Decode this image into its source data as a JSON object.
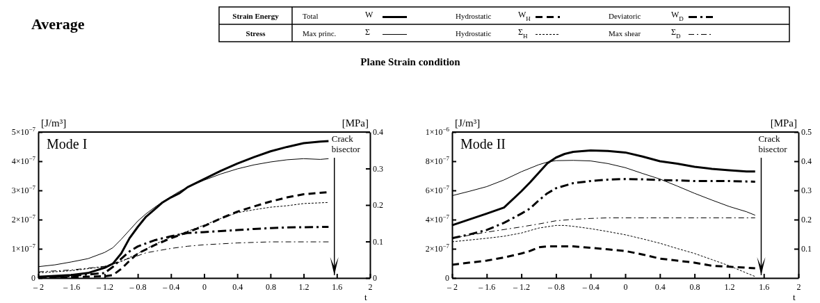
{
  "chart_data": [
    {
      "type": "line",
      "title": "Average",
      "subtitle": "Plane Strain condition",
      "xlabel": "t",
      "ylabel": "[J/m³]",
      "y2label": "[MPa]",
      "legend": "top",
      "grid": false,
      "annotations": [
        "Strain Energy",
        "Stress",
        "Mode I"
      ],
      "ref_lines": [
        {
          "axis": "x",
          "value": 1.57,
          "label": "Crack bisector"
        }
      ],
      "xlim": [
        -2,
        2
      ],
      "xticks": [
        {
          "value": -2,
          "label": "– 2"
        },
        {
          "value": -1.6,
          "label": "– 1.6"
        },
        {
          "value": -1.2,
          "label": "– 1.2"
        },
        {
          "value": -0.8,
          "label": "– 0.8"
        },
        {
          "value": -0.4,
          "label": "– 0.4"
        },
        0,
        0.4,
        0.8,
        1.2,
        1.6,
        2
      ],
      "ylim": [
        0,
        5e-07
      ],
      "yticks": [
        0,
        {
          "value": 1e-07,
          "label": "1×10$^{−7}$"
        },
        {
          "value": 2e-07,
          "label": "2×10$^{−7}$"
        },
        {
          "value": 3e-07,
          "label": "3×10$^{−7}$"
        },
        {
          "value": 4e-07,
          "label": "4×10$^{−7}$"
        },
        {
          "value": 5e-07,
          "label": "5×10$^{−7}$"
        }
      ],
      "y2lim": [
        0,
        0.4
      ],
      "y2ticks": [
        0,
        0.1,
        0.2,
        0.3,
        0.4
      ],
      "series": [
        {
          "name": "Total W",
          "color": "#000000",
          "line_style": "solid",
          "axis": "y",
          "x": [
            -2,
            -1.6,
            -1.4,
            -1.2,
            -1.1,
            -1,
            -0.9,
            -0.8,
            -0.7,
            -0.6,
            -0.5,
            -0.4,
            -0.3,
            -0.2,
            0,
            0.2,
            0.4,
            0.6,
            0.8,
            1,
            1.2,
            1.4,
            1.5
          ],
          "values": [
            4e-09,
            1e-08,
            1.7e-08,
            3.5e-08,
            4.9e-08,
            8.4e-08,
            1.36e-07,
            1.75e-07,
            2.1e-07,
            2.34e-07,
            2.59e-07,
            2.76e-07,
            2.9e-07,
            3.11e-07,
            3.39e-07,
            3.67e-07,
            3.92e-07,
            4.14e-07,
            4.34e-07,
            4.49e-07,
            4.62e-07,
            4.67e-07,
            4.69e-07
          ]
        },
        {
          "name": "Hydrostatic W$_{H}$",
          "color": "#000000",
          "line_style": "dashed",
          "axis": "y",
          "x": [
            -2,
            -1.6,
            -1.2,
            -1.1,
            -1,
            -0.9,
            -0.8,
            -0.6,
            -0.4,
            -0.2,
            0,
            0.2,
            0.4,
            0.6,
            0.8,
            1,
            1.2,
            1.5
          ],
          "values": [
            1e-09,
            3e-09,
            6e-09,
            1e-08,
            3.1e-08,
            5.9e-08,
            8.4e-08,
            1.12e-07,
            1.36e-07,
            1.57e-07,
            1.78e-07,
            2.04e-07,
            2.27e-07,
            2.45e-07,
            2.62e-07,
            2.76e-07,
            2.87e-07,
            2.94e-07
          ]
        },
        {
          "name": "Deviatoric W$_{D}$",
          "color": "#000000",
          "line_style": "dashdot",
          "axis": "y",
          "x": [
            -2,
            -1.6,
            -1.2,
            -1.1,
            -1,
            -0.9,
            -0.8,
            -0.6,
            -0.4,
            -0.2,
            0,
            0.2,
            0.4,
            0.6,
            0.8,
            1,
            1.2,
            1.5
          ],
          "values": [
            1e-09,
            7e-09,
            1.7e-08,
            3.8e-08,
            6.6e-08,
            9.1e-08,
            1.08e-07,
            1.29e-07,
            1.43e-07,
            1.54e-07,
            1.57e-07,
            1.61e-07,
            1.64e-07,
            1.68e-07,
            1.71e-07,
            1.73e-07,
            1.74e-07,
            1.75e-07
          ]
        },
        {
          "name": "Max princ. Σ",
          "color": "#000000",
          "line_style": "solid",
          "axis": "y2",
          "x": [
            -2,
            -1.8,
            -1.6,
            -1.4,
            -1.2,
            -1.1,
            -1,
            -0.9,
            -0.8,
            -0.7,
            -0.6,
            -0.5,
            -0.4,
            -0.3,
            -0.2,
            0,
            0.2,
            0.4,
            0.6,
            0.8,
            1,
            1.2,
            1.4,
            1.5
          ],
          "values": [
            0.031,
            0.036,
            0.044,
            0.053,
            0.07,
            0.083,
            0.106,
            0.131,
            0.156,
            0.176,
            0.193,
            0.209,
            0.223,
            0.237,
            0.249,
            0.268,
            0.285,
            0.299,
            0.31,
            0.318,
            0.324,
            0.327,
            0.325,
            0.327
          ]
        },
        {
          "name": "Hydrostatic Σ$_{H}$",
          "color": "#000000",
          "line_style": "dashed",
          "axis": "y2",
          "x": [
            -2,
            -1.6,
            -1.2,
            -1,
            -0.8,
            -0.6,
            -0.4,
            -0.2,
            0,
            0.2,
            0.4,
            0.6,
            0.8,
            1,
            1.2,
            1.5
          ],
          "values": [
            0.014,
            0.02,
            0.031,
            0.045,
            0.067,
            0.092,
            0.112,
            0.128,
            0.145,
            0.163,
            0.179,
            0.187,
            0.194,
            0.198,
            0.204,
            0.207
          ]
        },
        {
          "name": "Max shear Σ$_{D}$",
          "color": "#000000",
          "line_style": "dashdot",
          "axis": "y2",
          "x": [
            -2,
            -1.6,
            -1.2,
            -1,
            -0.8,
            -0.7,
            -0.4,
            -0.2,
            0,
            0.4,
            0.8,
            1.5
          ],
          "values": [
            0.017,
            0.022,
            0.032,
            0.047,
            0.061,
            0.069,
            0.081,
            0.087,
            0.091,
            0.096,
            0.099,
            0.099
          ]
        }
      ]
    },
    {
      "type": "line",
      "xlabel": "t",
      "ylabel": "[J/m³]",
      "y2label": "[MPa]",
      "grid": false,
      "annotations": [
        "Mode II"
      ],
      "ref_lines": [
        {
          "axis": "x",
          "value": 1.57,
          "label": "Crack bisector"
        }
      ],
      "xlim": [
        -2,
        2
      ],
      "xticks": [
        {
          "value": -2,
          "label": "– 2"
        },
        {
          "value": -1.6,
          "label": "– 1.6"
        },
        {
          "value": -1.2,
          "label": "– 1.2"
        },
        {
          "value": -0.8,
          "label": "– 0.8"
        },
        {
          "value": -0.4,
          "label": "– 0.4"
        },
        0,
        0.4,
        0.8,
        1.2,
        1.6,
        2
      ],
      "ylim": [
        0,
        1e-06
      ],
      "yticks": [
        0,
        {
          "value": 2e-07,
          "label": "2×10$^{−7}$"
        },
        {
          "value": 4e-07,
          "label": "4×10$^{−7}$"
        },
        {
          "value": 6e-07,
          "label": "6×10$^{−7}$"
        },
        {
          "value": 8e-07,
          "label": "8×10$^{−7}$"
        },
        {
          "value": 1e-06,
          "label": "1×10$^{−6}$"
        }
      ],
      "y2lim": [
        0,
        0.5
      ],
      "y2ticks": [
        0.1,
        0.2,
        0.3,
        0.4,
        0.5
      ],
      "series": [
        {
          "color": "#000000",
          "line_style": "solid",
          "axis": "y",
          "x": [
            -2,
            -1.6,
            -1.4,
            -1.2,
            -1.1,
            -1,
            -0.9,
            -0.8,
            -0.7,
            -0.6,
            -0.4,
            -0.2,
            0,
            0.2,
            0.4,
            0.6,
            0.8,
            1,
            1.2,
            1.4,
            1.5
          ],
          "values": [
            3.61e-07,
            4.41e-07,
            4.83e-07,
            5.94e-07,
            6.55e-07,
            7.2e-07,
            7.86e-07,
            8.25e-07,
            8.5e-07,
            8.64e-07,
            8.74e-07,
            8.7e-07,
            8.6e-07,
            8.32e-07,
            8e-07,
            7.83e-07,
            7.62e-07,
            7.48e-07,
            7.38e-07,
            7.3e-07,
            7.3e-07
          ]
        },
        {
          "color": "#000000",
          "line_style": "dashed",
          "axis": "y",
          "x": [
            -2,
            -1.6,
            -1.4,
            -1.2,
            -1.1,
            -1,
            -0.9,
            -0.8,
            -0.6,
            -0.4,
            -0.2,
            0,
            0.2,
            0.4,
            0.6,
            0.8,
            1,
            1.2,
            1.5
          ],
          "values": [
            9.1e-08,
            1.19e-07,
            1.4e-07,
            1.68e-07,
            1.85e-07,
            2.1e-07,
            2.17e-07,
            2.17e-07,
            2.17e-07,
            2.07e-07,
            1.96e-07,
            1.85e-07,
            1.61e-07,
            1.33e-07,
            1.19e-07,
            1.05e-07,
            8.4e-08,
            7.7e-08,
            6.7e-08
          ]
        },
        {
          "color": "#000000",
          "line_style": "dashdot",
          "axis": "y",
          "x": [
            -2,
            -1.8,
            -1.6,
            -1.4,
            -1.2,
            -1.1,
            -1,
            -0.9,
            -0.8,
            -0.6,
            -0.4,
            -0.2,
            0,
            0.2,
            0.4,
            0.6,
            0.8,
            1,
            1.2,
            1.5
          ],
          "values": [
            2.73e-07,
            2.98e-07,
            3.29e-07,
            3.78e-07,
            4.41e-07,
            4.76e-07,
            5.31e-07,
            5.8e-07,
            6.15e-07,
            6.5e-07,
            6.64e-07,
            6.74e-07,
            6.78e-07,
            6.76e-07,
            6.71e-07,
            6.69e-07,
            6.64e-07,
            6.64e-07,
            6.64e-07,
            6.6e-07
          ]
        },
        {
          "color": "#000000",
          "line_style": "solid",
          "axis": "y2",
          "x": [
            -2,
            -1.8,
            -1.6,
            -1.4,
            -1.2,
            -1,
            -0.9,
            -0.8,
            -0.6,
            -0.4,
            -0.2,
            0,
            0.2,
            0.4,
            0.6,
            0.8,
            1,
            1.2,
            1.4,
            1.5
          ],
          "values": [
            0.282,
            0.297,
            0.313,
            0.336,
            0.364,
            0.388,
            0.397,
            0.402,
            0.403,
            0.401,
            0.392,
            0.378,
            0.358,
            0.339,
            0.315,
            0.29,
            0.267,
            0.245,
            0.227,
            0.215
          ]
        },
        {
          "color": "#000000",
          "line_style": "dashed",
          "axis": "y2",
          "x": [
            -2,
            -1.6,
            -1.4,
            -1.2,
            -1,
            -0.8,
            -0.7,
            -0.6,
            -0.4,
            -0.2,
            0,
            0.2,
            0.4,
            0.6,
            0.8,
            1,
            1.2,
            1.4,
            1.5
          ],
          "values": [
            0.124,
            0.136,
            0.143,
            0.154,
            0.171,
            0.18,
            0.18,
            0.177,
            0.169,
            0.159,
            0.148,
            0.134,
            0.119,
            0.101,
            0.084,
            0.063,
            0.042,
            0.017,
            0.005
          ]
        },
        {
          "color": "#000000",
          "line_style": "dashdot",
          "axis": "y2",
          "x": [
            -2,
            -1.6,
            -1.2,
            -1,
            -0.8,
            -0.6,
            -0.4,
            -0.2,
            0,
            1.5
          ],
          "values": [
            0.136,
            0.157,
            0.175,
            0.185,
            0.196,
            0.201,
            0.204,
            0.206,
            0.206,
            0.206
          ]
        }
      ]
    }
  ]
}
